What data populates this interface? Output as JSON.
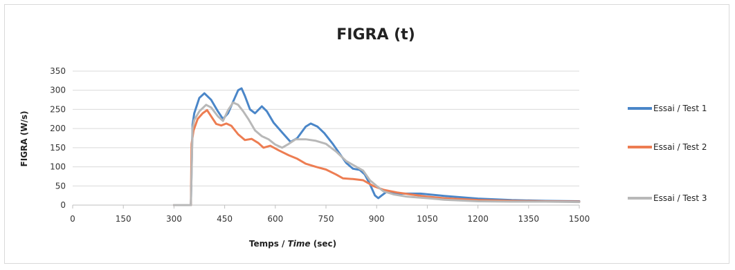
{
  "chart_data": {
    "type": "line",
    "title": "FIGRA (t)",
    "xlabel_prefix": "Temps / ",
    "xlabel_italic": "Time",
    "xlabel_suffix": " (sec)",
    "ylabel": "FIGRA (W/s)",
    "xlim": [
      0,
      1500
    ],
    "ylim": [
      0,
      350
    ],
    "xticks": [
      0,
      150,
      300,
      450,
      600,
      750,
      900,
      1050,
      1200,
      1350,
      1500
    ],
    "yticks": [
      0,
      50,
      100,
      150,
      200,
      250,
      300,
      350
    ],
    "grid": true,
    "legend_position": "right",
    "series": [
      {
        "name": "Essai / Test 1",
        "color": "#4a86c8",
        "points": [
          [
            300,
            0
          ],
          [
            350,
            0
          ],
          [
            355,
            210
          ],
          [
            360,
            240
          ],
          [
            375,
            280
          ],
          [
            390,
            292
          ],
          [
            410,
            275
          ],
          [
            430,
            245
          ],
          [
            445,
            225
          ],
          [
            460,
            240
          ],
          [
            475,
            270
          ],
          [
            490,
            300
          ],
          [
            500,
            305
          ],
          [
            510,
            285
          ],
          [
            525,
            250
          ],
          [
            540,
            240
          ],
          [
            560,
            258
          ],
          [
            575,
            245
          ],
          [
            595,
            215
          ],
          [
            620,
            190
          ],
          [
            645,
            165
          ],
          [
            665,
            175
          ],
          [
            690,
            205
          ],
          [
            705,
            213
          ],
          [
            725,
            205
          ],
          [
            745,
            188
          ],
          [
            770,
            160
          ],
          [
            790,
            135
          ],
          [
            810,
            110
          ],
          [
            830,
            95
          ],
          [
            850,
            92
          ],
          [
            865,
            80
          ],
          [
            880,
            55
          ],
          [
            895,
            25
          ],
          [
            905,
            18
          ],
          [
            915,
            25
          ],
          [
            930,
            35
          ],
          [
            960,
            30
          ],
          [
            1000,
            30
          ],
          [
            1030,
            30
          ],
          [
            1100,
            24
          ],
          [
            1200,
            17
          ],
          [
            1300,
            13
          ],
          [
            1400,
            11
          ],
          [
            1500,
            10
          ]
        ]
      },
      {
        "name": "Essai / Test 2",
        "color": "#ed7d52",
        "points": [
          [
            300,
            0
          ],
          [
            350,
            0
          ],
          [
            352,
            160
          ],
          [
            358,
            195
          ],
          [
            370,
            225
          ],
          [
            385,
            240
          ],
          [
            398,
            248
          ],
          [
            410,
            232
          ],
          [
            425,
            212
          ],
          [
            440,
            208
          ],
          [
            455,
            213
          ],
          [
            470,
            207
          ],
          [
            490,
            185
          ],
          [
            510,
            170
          ],
          [
            530,
            173
          ],
          [
            550,
            162
          ],
          [
            565,
            150
          ],
          [
            585,
            155
          ],
          [
            610,
            143
          ],
          [
            640,
            130
          ],
          [
            665,
            121
          ],
          [
            690,
            108
          ],
          [
            720,
            100
          ],
          [
            750,
            93
          ],
          [
            780,
            80
          ],
          [
            800,
            70
          ],
          [
            830,
            68
          ],
          [
            860,
            65
          ],
          [
            890,
            50
          ],
          [
            920,
            40
          ],
          [
            960,
            33
          ],
          [
            1000,
            28
          ],
          [
            1050,
            22
          ],
          [
            1100,
            18
          ],
          [
            1200,
            13
          ],
          [
            1300,
            11
          ],
          [
            1400,
            10
          ],
          [
            1500,
            9
          ]
        ]
      },
      {
        "name": "Essai / Test 3",
        "color": "#b8b8b8",
        "points": [
          [
            300,
            0
          ],
          [
            350,
            0
          ],
          [
            355,
            200
          ],
          [
            360,
            222
          ],
          [
            375,
            245
          ],
          [
            395,
            262
          ],
          [
            410,
            255
          ],
          [
            430,
            232
          ],
          [
            445,
            220
          ],
          [
            460,
            248
          ],
          [
            475,
            268
          ],
          [
            490,
            262
          ],
          [
            505,
            245
          ],
          [
            520,
            225
          ],
          [
            540,
            195
          ],
          [
            560,
            180
          ],
          [
            580,
            172
          ],
          [
            600,
            158
          ],
          [
            620,
            150
          ],
          [
            640,
            160
          ],
          [
            660,
            172
          ],
          [
            690,
            172
          ],
          [
            720,
            168
          ],
          [
            750,
            160
          ],
          [
            780,
            140
          ],
          [
            810,
            115
          ],
          [
            840,
            100
          ],
          [
            860,
            90
          ],
          [
            880,
            65
          ],
          [
            900,
            50
          ],
          [
            920,
            36
          ],
          [
            950,
            28
          ],
          [
            990,
            22
          ],
          [
            1050,
            18
          ],
          [
            1100,
            14
          ],
          [
            1200,
            10
          ],
          [
            1300,
            9
          ],
          [
            1400,
            9
          ],
          [
            1500,
            8
          ]
        ]
      }
    ]
  }
}
